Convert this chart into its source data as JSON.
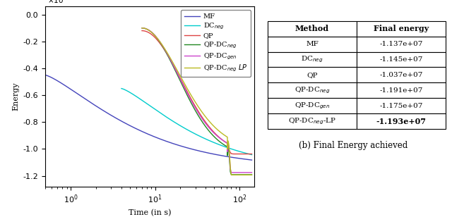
{
  "xlabel": "Time (in s)",
  "ylabel": "Energy",
  "ylim": [
    -12800000.0,
    600000.0
  ],
  "xlim_log": [
    0.5,
    150
  ],
  "yticks": [
    0.0,
    -2000000.0,
    -4000000.0,
    -6000000.0,
    -8000000.0,
    -10000000.0,
    -12000000.0
  ],
  "legend_labels": [
    "MF",
    "DC$_{neg}$",
    "QP",
    "QP-DC$_{neg}$",
    "QP-DC$_{gen}$",
    "QP-DC$_{neg}$ $LP$"
  ],
  "line_colors": [
    "#4444bb",
    "#00cccc",
    "#dd4444",
    "#228822",
    "#cc44cc",
    "#bbbb22"
  ],
  "table_col_labels": [
    "Method",
    "Final energy"
  ],
  "table_methods_latex": [
    "MF",
    "DC$_{neg}$",
    "QP",
    "QP-DC$_{neg}$",
    "QP-DC$_{gen}$",
    "QP-DC$_{neg}$-LP"
  ],
  "table_energies": [
    "-1.137e+07",
    "-1.145e+07",
    "-1.037e+07",
    "-1.191e+07",
    "-1.175e+07",
    "-1.193e+07"
  ],
  "table_bold_last_energy": true,
  "caption": "(b) Final Energy achieved"
}
